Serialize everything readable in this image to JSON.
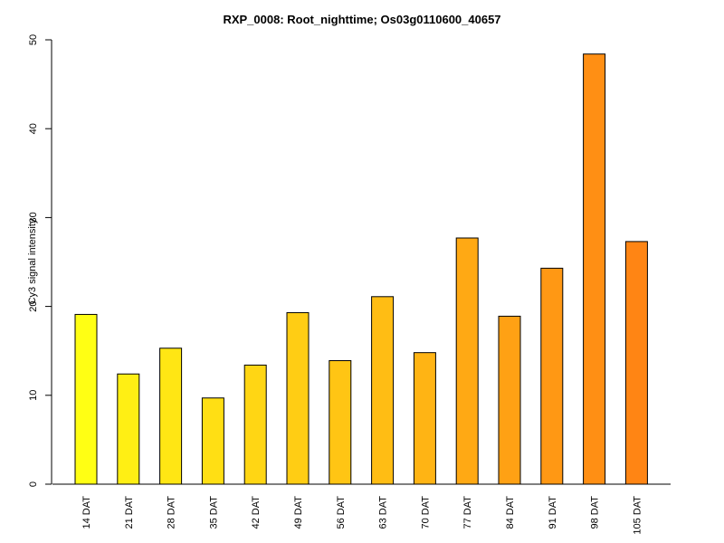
{
  "chart_data": {
    "type": "bar",
    "title": "RXP_0008: Root_nighttime; Os03g0110600_40657",
    "xlabel": "",
    "ylabel": "Cy3 signal intensity",
    "ylim": [
      0,
      50
    ],
    "yticks": [
      0,
      10,
      20,
      30,
      40,
      50
    ],
    "grid": false,
    "legend": "none",
    "categories": [
      "14 DAT",
      "21 DAT",
      "28 DAT",
      "35 DAT",
      "42 DAT",
      "49 DAT",
      "56 DAT",
      "63 DAT",
      "70 DAT",
      "77 DAT",
      "84 DAT",
      "91 DAT",
      "98 DAT",
      "105 DAT"
    ],
    "values": [
      19.1,
      12.4,
      15.3,
      9.7,
      13.4,
      19.3,
      13.9,
      21.1,
      14.8,
      27.7,
      18.9,
      24.3,
      48.4,
      27.3
    ],
    "colors": [
      "#ffff14",
      "#ffef14",
      "#ffe614",
      "#ffdf14",
      "#ffd614",
      "#ffcd14",
      "#ffc514",
      "#ffbd14",
      "#ffb414",
      "#ffa914",
      "#ffa114",
      "#ff9814",
      "#ff8f14",
      "#ff8514"
    ]
  }
}
